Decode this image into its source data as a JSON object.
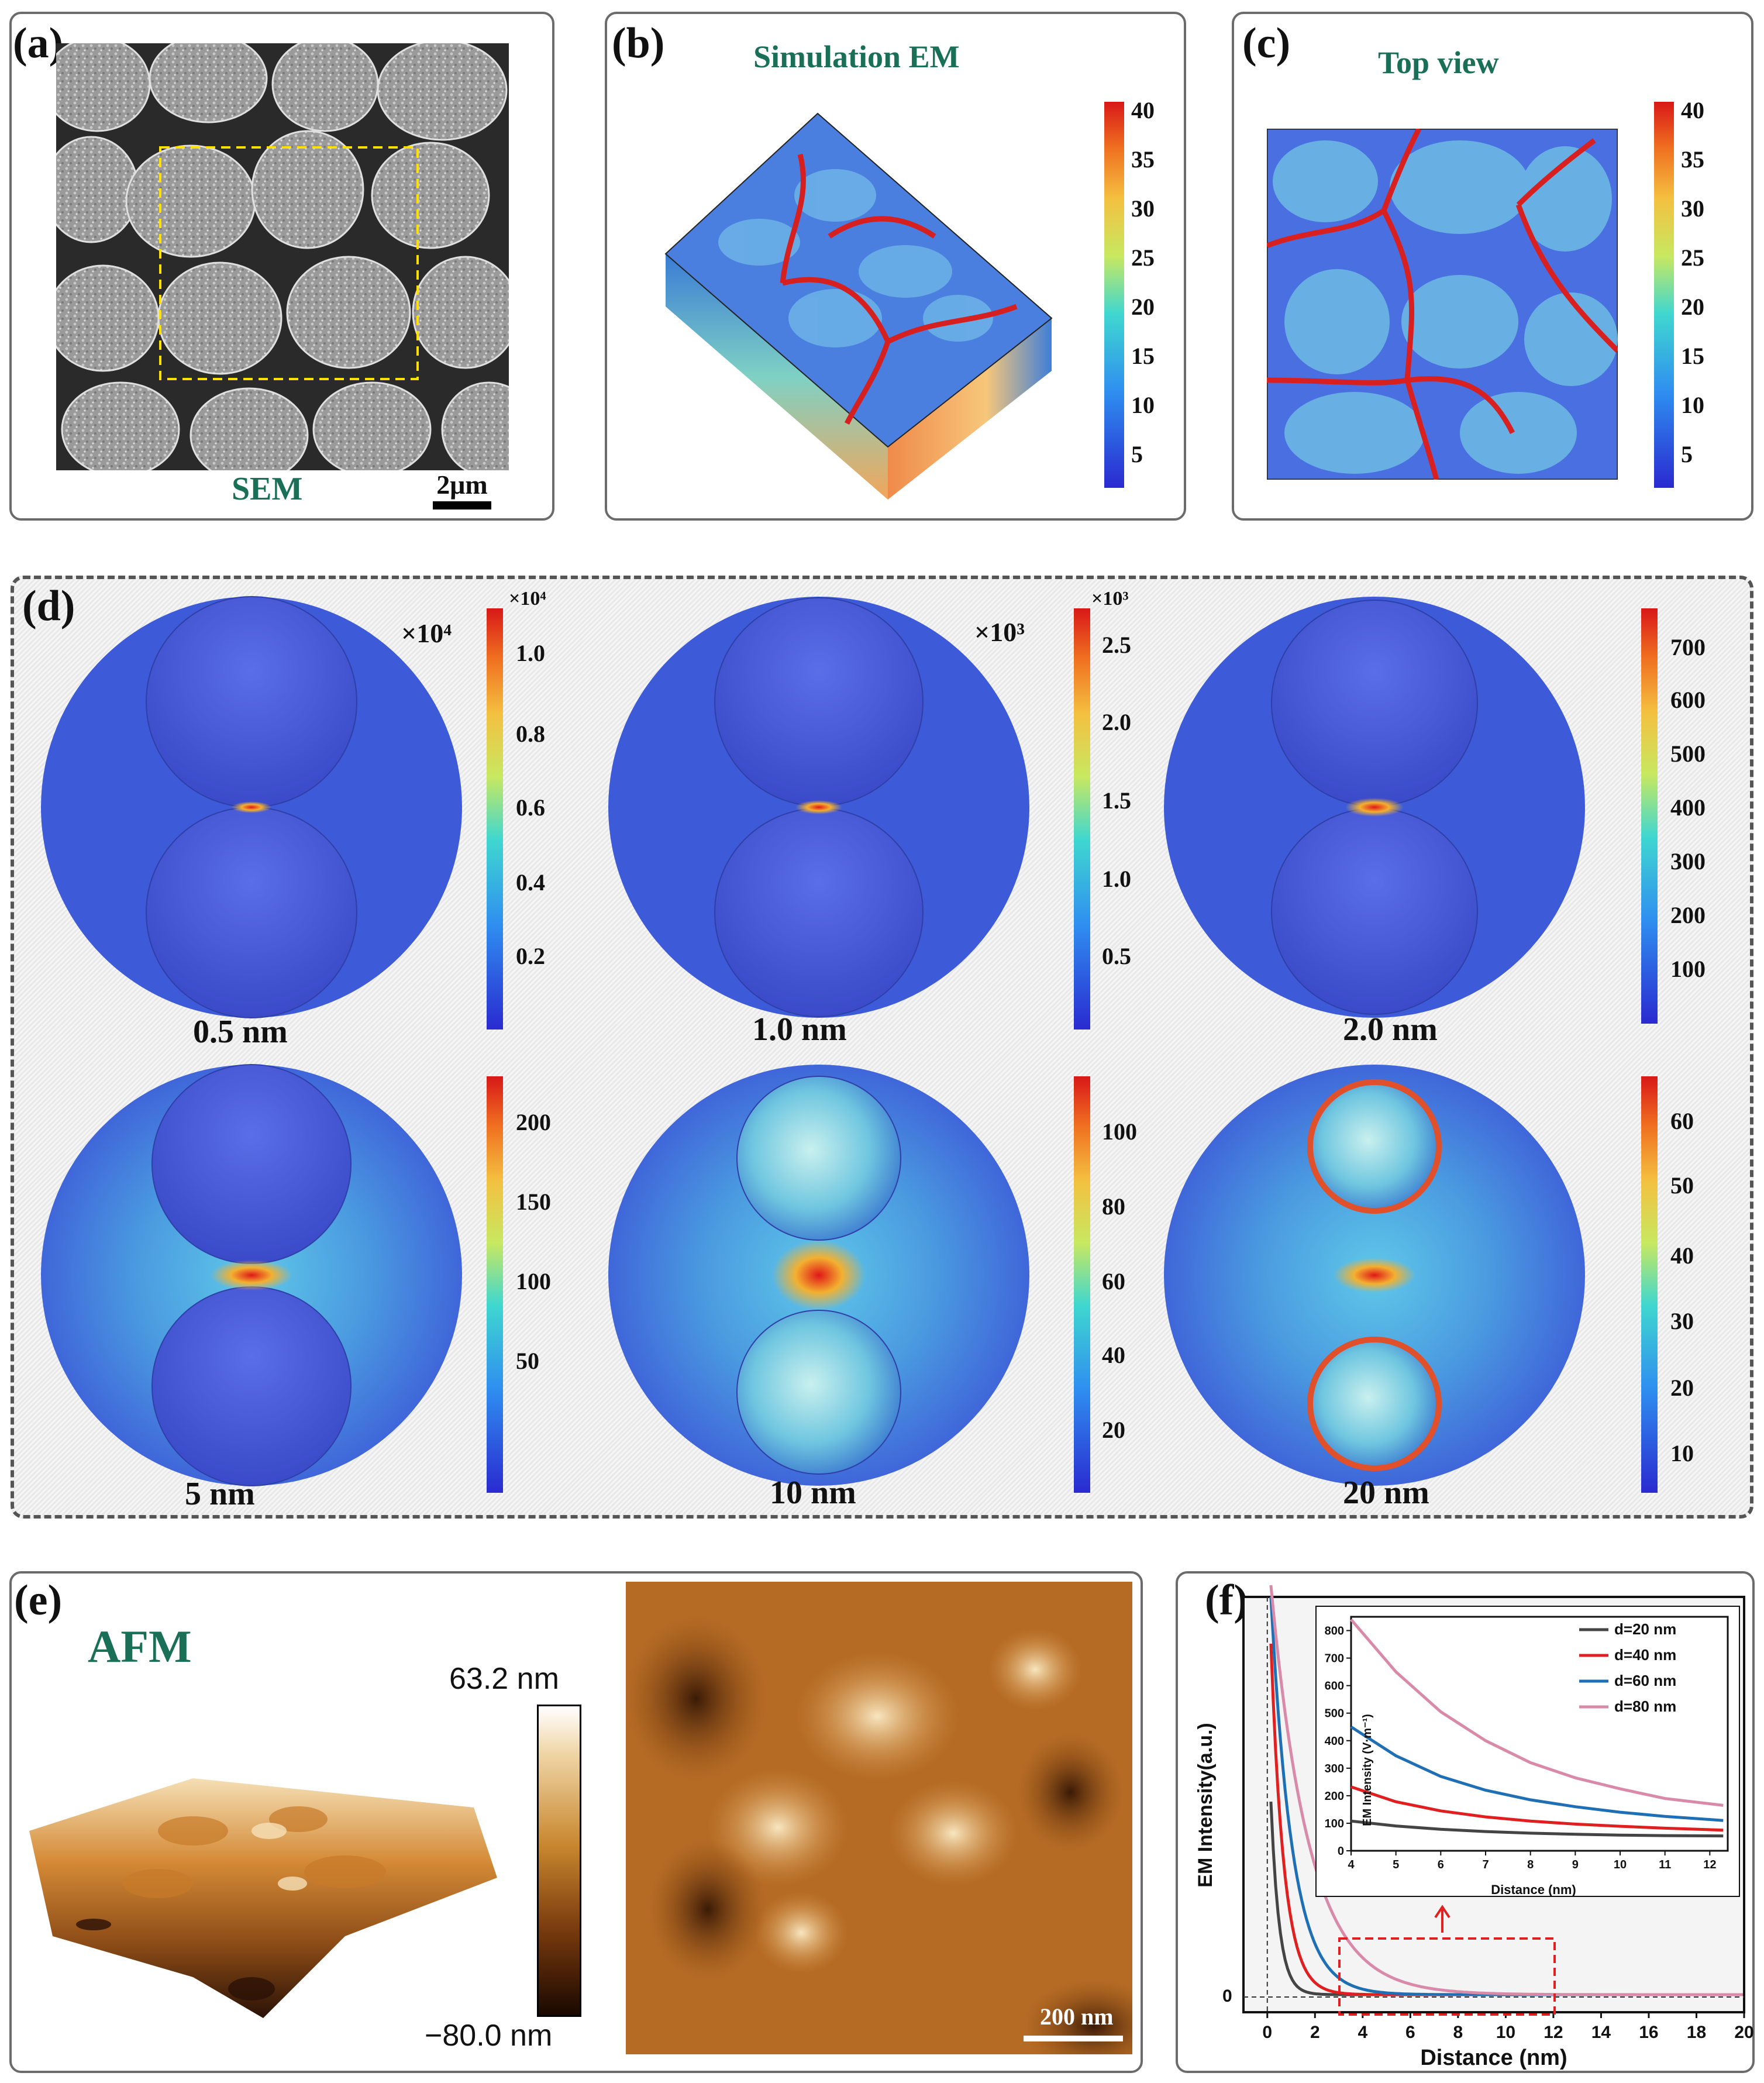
{
  "panels": {
    "a": {
      "label": "(a)",
      "caption": "SEM",
      "scalebar": "2μm"
    },
    "b": {
      "label": "(b)",
      "title": "Simulation EM",
      "colorbar_ticks": [
        "40",
        "35",
        "30",
        "25",
        "20",
        "15",
        "10",
        "5"
      ]
    },
    "c": {
      "label": "(c)",
      "title": "Top view",
      "colorbar_ticks": [
        "40",
        "35",
        "30",
        "25",
        "20",
        "15",
        "10",
        "5"
      ]
    },
    "d": {
      "label": "(d)",
      "cells": [
        {
          "gap": "0.5 nm",
          "multiplier": "×10⁴",
          "cbar_exp": "×10⁴",
          "ticks": [
            "1.0",
            "0.8",
            "0.6",
            "0.4",
            "0.2"
          ]
        },
        {
          "gap": "1.0 nm",
          "multiplier": "×10³",
          "cbar_exp": "×10³",
          "ticks": [
            "2.5",
            "2.0",
            "1.5",
            "1.0",
            "0.5"
          ]
        },
        {
          "gap": "2.0 nm",
          "multiplier": "",
          "cbar_exp": "",
          "ticks": [
            "700",
            "600",
            "500",
            "400",
            "300",
            "200",
            "100"
          ]
        },
        {
          "gap": "5 nm",
          "multiplier": "",
          "cbar_exp": "",
          "ticks": [
            "200",
            "150",
            "100",
            "50"
          ]
        },
        {
          "gap": "10 nm",
          "multiplier": "",
          "cbar_exp": "",
          "ticks": [
            "100",
            "80",
            "60",
            "40",
            "20"
          ]
        },
        {
          "gap": "20 nm",
          "multiplier": "",
          "cbar_exp": "",
          "ticks": [
            "60",
            "50",
            "40",
            "30",
            "20",
            "10"
          ]
        }
      ]
    },
    "e": {
      "label": "(e)",
      "title": "AFM",
      "max": "63.2 nm",
      "min": "−80.0 nm",
      "scalebar": "200 nm"
    },
    "f": {
      "label": "(f)"
    }
  },
  "chart_data": {
    "type": "line",
    "xlabel": "Distance (nm)",
    "ylabel": "EM Intensity(a.u.)",
    "xlim": [
      -1,
      20
    ],
    "x_ticks": [
      "0",
      "2",
      "4",
      "6",
      "8",
      "10",
      "12",
      "14",
      "16",
      "18",
      "20"
    ],
    "y_ticks": [
      "0"
    ],
    "inset": {
      "xlabel": "Distance (nm)",
      "ylabel": "EM Intensity (V·m⁻¹)",
      "xlim": [
        4,
        12.4
      ],
      "ylim": [
        0,
        850
      ],
      "x_ticks": [
        "4",
        "5",
        "6",
        "7",
        "8",
        "9",
        "10",
        "11",
        "12"
      ],
      "y_ticks": [
        "0",
        "100",
        "200",
        "300",
        "400",
        "500",
        "600",
        "700",
        "800"
      ],
      "series": [
        {
          "name": "d=20 nm",
          "color": "#444444",
          "x": [
            4,
            5,
            6,
            7,
            8,
            9,
            10,
            11,
            12.3
          ],
          "values": [
            108,
            90,
            78,
            70,
            64,
            60,
            57,
            55,
            54
          ]
        },
        {
          "name": "d=40 nm",
          "color": "#e02020",
          "x": [
            4,
            5,
            6,
            7,
            8,
            9,
            10,
            11,
            12.3
          ],
          "values": [
            232,
            178,
            145,
            123,
            108,
            97,
            89,
            82,
            75
          ]
        },
        {
          "name": "d=60 nm",
          "color": "#1f6fb5",
          "x": [
            4,
            5,
            6,
            7,
            8,
            9,
            10,
            11,
            12.3
          ],
          "values": [
            450,
            345,
            270,
            220,
            185,
            160,
            140,
            125,
            110
          ]
        },
        {
          "name": "d=80 nm",
          "color": "#d98aa8",
          "x": [
            4,
            5,
            6,
            7,
            8,
            9,
            10,
            11,
            12.3
          ],
          "values": [
            840,
            650,
            505,
            400,
            320,
            265,
            225,
            190,
            165
          ]
        }
      ]
    }
  }
}
